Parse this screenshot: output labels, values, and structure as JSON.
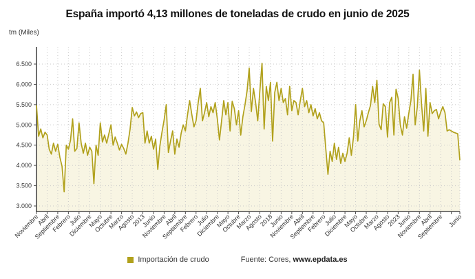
{
  "title": "España importó 4,13 millones de toneladas de crudo en junio de 2025",
  "y_axis_label": "tm (Miles)",
  "legend": {
    "label": "Importación de crudo"
  },
  "source": {
    "prefix": "Fuente: Cores, ",
    "site": "www.epdata.es"
  },
  "colors": {
    "line": "#b1a11c",
    "fill": "#f8f5e3",
    "grid": "#c9c9c9",
    "axis": "#4a4a4a",
    "text": "#333333",
    "title": "#111111"
  },
  "chart_data": {
    "type": "line",
    "title": "España importó 4,13 millones de toneladas de crudo en junio de 2025",
    "xlabel": "",
    "ylabel": "tm (Miles)",
    "ylim": [
      3000,
      6500
    ],
    "grid": "dotted",
    "legend_position": "bottom",
    "x_unit": "month",
    "x_start": "Noviembre 2008",
    "x_end": "Junio 2025",
    "highlight_value_june_2025": 4130,
    "y_ticks": [
      {
        "value": 6500,
        "label": "6.500"
      },
      {
        "value": 6000,
        "label": "6.000"
      },
      {
        "value": 5500,
        "label": "5.500"
      },
      {
        "value": 5000,
        "label": "5.000"
      },
      {
        "value": 4500,
        "label": "4.500"
      },
      {
        "value": 4000,
        "label": "4.000"
      },
      {
        "value": 3500,
        "label": "3.500"
      },
      {
        "value": 3000,
        "label": "3.000"
      }
    ],
    "x_ticks": [
      {
        "index": 0,
        "label": "Noviembre"
      },
      {
        "index": 5,
        "label": "Abril"
      },
      {
        "index": 10,
        "label": "Septiembre"
      },
      {
        "index": 15,
        "label": "Febrero"
      },
      {
        "index": 20,
        "label": "Julio"
      },
      {
        "index": 25,
        "label": "Diciembre"
      },
      {
        "index": 30,
        "label": "Mayo"
      },
      {
        "index": 35,
        "label": "Octubre"
      },
      {
        "index": 40,
        "label": "Marzo"
      },
      {
        "index": 45,
        "label": "Agosto"
      },
      {
        "index": 50,
        "label": "2013"
      },
      {
        "index": 55,
        "label": "Junio"
      },
      {
        "index": 60,
        "label": "Noviembre"
      },
      {
        "index": 65,
        "label": "Abril"
      },
      {
        "index": 70,
        "label": "Septiembre"
      },
      {
        "index": 75,
        "label": "Febrero"
      },
      {
        "index": 80,
        "label": "Julio"
      },
      {
        "index": 85,
        "label": "Diciembre"
      },
      {
        "index": 90,
        "label": "Mayo"
      },
      {
        "index": 95,
        "label": "Octubre"
      },
      {
        "index": 100,
        "label": "Marzo"
      },
      {
        "index": 105,
        "label": "Agosto"
      },
      {
        "index": 110,
        "label": "2018"
      },
      {
        "index": 115,
        "label": "Junio"
      },
      {
        "index": 120,
        "label": "Noviembre"
      },
      {
        "index": 125,
        "label": "Abril"
      },
      {
        "index": 130,
        "label": "Septiembre"
      },
      {
        "index": 135,
        "label": "Febrero"
      },
      {
        "index": 140,
        "label": "Julio"
      },
      {
        "index": 145,
        "label": "Diciembre"
      },
      {
        "index": 150,
        "label": "Mayo"
      },
      {
        "index": 155,
        "label": "Octubre"
      },
      {
        "index": 160,
        "label": "Marzo"
      },
      {
        "index": 165,
        "label": "Agosto"
      },
      {
        "index": 170,
        "label": "2023"
      },
      {
        "index": 175,
        "label": "Junio"
      },
      {
        "index": 180,
        "label": "Noviembre"
      },
      {
        "index": 185,
        "label": "Abril"
      },
      {
        "index": 190,
        "label": "Septiembre"
      },
      {
        "index": 195,
        "label": ""
      },
      {
        "index": 199,
        "label": "Junio"
      }
    ],
    "series": [
      {
        "name": "Importación de crudo",
        "values": [
          5480,
          4720,
          4900,
          4680,
          4820,
          4750,
          4400,
          4280,
          4550,
          4350,
          4520,
          4200,
          3980,
          3350,
          4500,
          4400,
          4620,
          5150,
          4350,
          4420,
          5050,
          4550,
          4300,
          4550,
          4250,
          4450,
          4350,
          3550,
          4500,
          4250,
          5050,
          4580,
          4750,
          4550,
          4780,
          5000,
          4500,
          4700,
          4550,
          4380,
          4520,
          4420,
          4280,
          4550,
          4900,
          5430,
          5220,
          5320,
          5180,
          5280,
          5300,
          4550,
          4850,
          4550,
          4720,
          4400,
          4650,
          3900,
          4480,
          4820,
          5120,
          5500,
          4320,
          4600,
          4850,
          4280,
          4650,
          4450,
          4800,
          5000,
          4850,
          5250,
          5600,
          5260,
          4950,
          5100,
          5550,
          5900,
          5100,
          5300,
          5550,
          5200,
          5450,
          5300,
          5550,
          5150,
          4630,
          5100,
          5600,
          5250,
          5550,
          4850,
          5580,
          5400,
          5000,
          5350,
          4750,
          5200,
          5500,
          5850,
          6400,
          5330,
          5900,
          5550,
          5100,
          5850,
          6520,
          4900,
          5950,
          5600,
          6050,
          4600,
          5800,
          6050,
          5600,
          5900,
          5550,
          5650,
          5250,
          5950,
          5350,
          5600,
          5550,
          5250,
          5600,
          5900,
          5450,
          5600,
          5300,
          5500,
          5220,
          5400,
          5150,
          5300,
          5100,
          5050,
          4400,
          3780,
          4350,
          4100,
          4550,
          4150,
          4450,
          4050,
          4300,
          4100,
          4300,
          4680,
          4250,
          4700,
          5500,
          4600,
          5100,
          5350,
          4950,
          5100,
          5300,
          5480,
          5950,
          5550,
          6100,
          5020,
          4880,
          5520,
          5450,
          4700,
          5550,
          5680,
          4750,
          5880,
          5650,
          5000,
          4750,
          5200,
          4920,
          5280,
          5600,
          6250,
          5000,
          5450,
          6350,
          5500,
          4850,
          5900,
          4720,
          5550,
          5280,
          5350,
          5380,
          5150,
          5320,
          5450,
          5300,
          4850,
          4880,
          4850,
          4820,
          4800,
          4780,
          4130
        ]
      }
    ]
  }
}
